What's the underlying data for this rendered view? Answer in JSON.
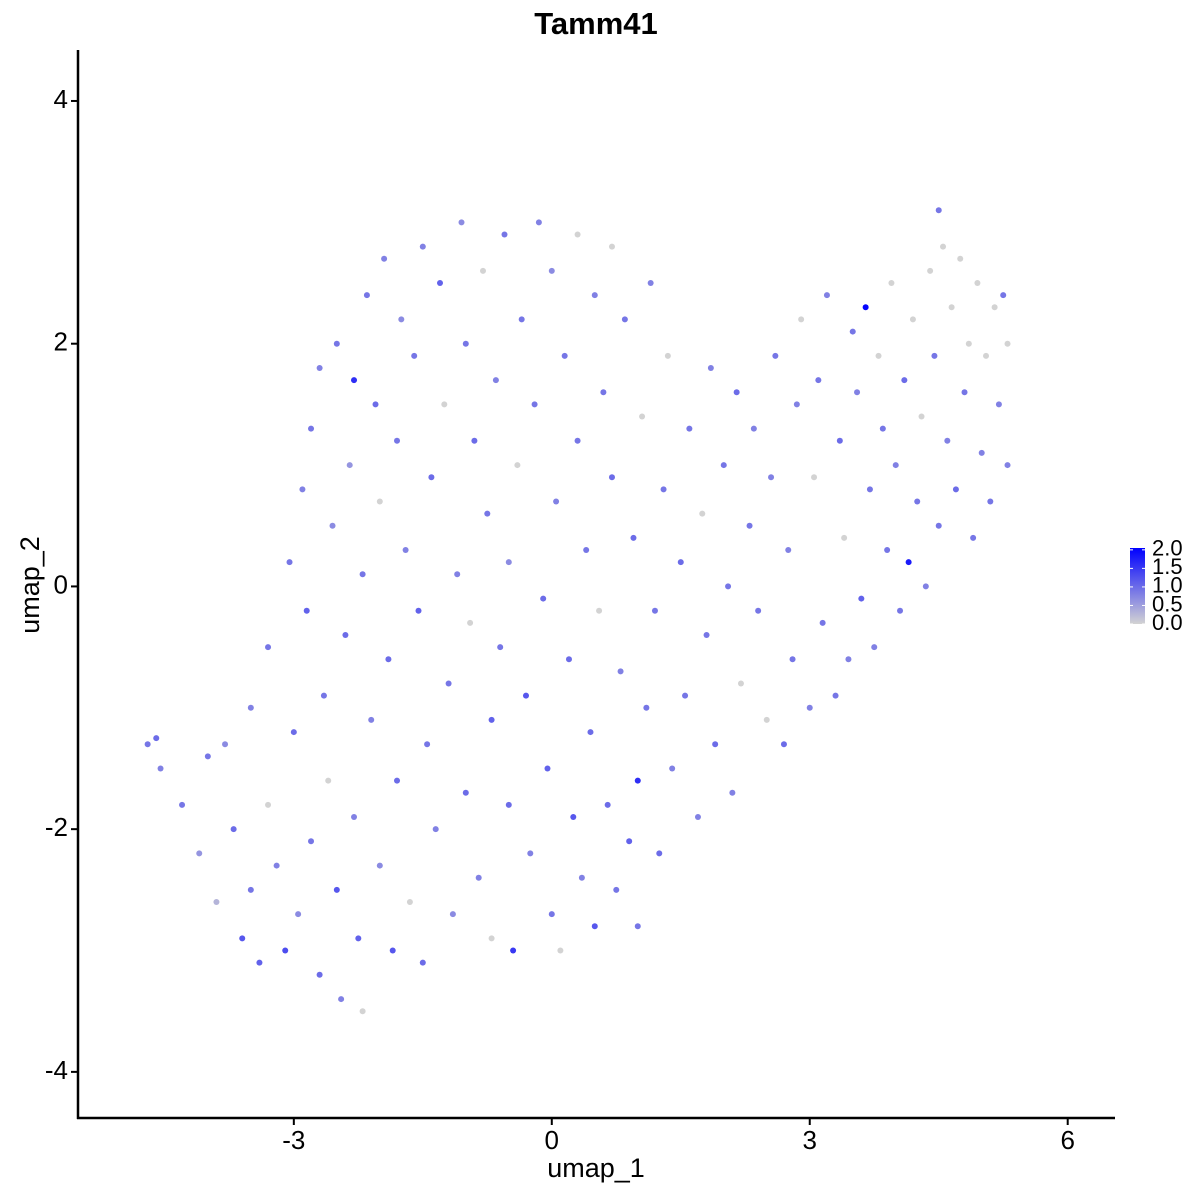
{
  "chart_data": {
    "type": "scatter",
    "title": "Tamm41",
    "x_label": "umap_1",
    "y_label": "umap_2",
    "xlim": [
      -5.51,
      6.55
    ],
    "ylim": [
      -4.38,
      4.42
    ],
    "xticks": [
      -3,
      0,
      3,
      6
    ],
    "yticks": [
      -4,
      -2,
      0,
      2,
      4
    ],
    "color_low": "#d3d3d3",
    "color_high": "#0000ff",
    "clim": [
      0,
      2.05
    ],
    "cticks": [
      {
        "value": 0,
        "label": "0.0"
      },
      {
        "value": 0.5,
        "label": "0.5"
      },
      {
        "value": 1,
        "label": "1.0"
      },
      {
        "value": 1.5,
        "label": "1.5"
      },
      {
        "value": 2,
        "label": "2.0"
      }
    ],
    "x": [
      -4.7,
      -4.6,
      -4.55,
      -4.3,
      -4.1,
      -4.0,
      -3.9,
      -3.8,
      -3.7,
      -3.6,
      -3.5,
      -3.5,
      -3.4,
      -3.3,
      -3.3,
      -3.2,
      -3.1,
      -3.05,
      -3.0,
      -2.95,
      -2.9,
      -2.85,
      -2.8,
      -2.8,
      -2.7,
      -2.7,
      -2.65,
      -2.6,
      -2.55,
      -2.5,
      -2.5,
      -2.45,
      -2.4,
      -2.35,
      -2.3,
      -2.3,
      -2.25,
      -2.2,
      -2.2,
      -2.15,
      -2.1,
      -2.05,
      -2.0,
      -2.0,
      -1.95,
      -1.9,
      -1.85,
      -1.8,
      -1.8,
      -1.75,
      -1.7,
      -1.65,
      -1.6,
      -1.55,
      -1.5,
      -1.5,
      -1.45,
      -1.4,
      -1.35,
      -1.3,
      -1.25,
      -1.2,
      -1.15,
      -1.1,
      -1.05,
      -1.0,
      -1.0,
      -0.95,
      -0.9,
      -0.85,
      -0.8,
      -0.75,
      -0.7,
      -0.7,
      -0.65,
      -0.6,
      -0.55,
      -0.5,
      -0.5,
      -0.45,
      -0.4,
      -0.35,
      -0.3,
      -0.25,
      -0.2,
      -0.15,
      -0.1,
      -0.05,
      0.0,
      0.0,
      0.05,
      0.1,
      0.15,
      0.2,
      0.25,
      0.3,
      0.3,
      0.35,
      0.4,
      0.45,
      0.5,
      0.5,
      0.55,
      0.6,
      0.65,
      0.7,
      0.7,
      0.75,
      0.8,
      0.85,
      0.9,
      0.95,
      1.0,
      1.0,
      1.05,
      1.1,
      1.15,
      1.2,
      1.25,
      1.3,
      1.35,
      1.4,
      1.5,
      1.55,
      1.6,
      1.7,
      1.75,
      1.8,
      1.85,
      1.9,
      2.0,
      2.05,
      2.1,
      2.15,
      2.2,
      2.3,
      2.35,
      2.4,
      2.5,
      2.55,
      2.6,
      2.7,
      2.75,
      2.8,
      2.85,
      2.9,
      3.0,
      3.05,
      3.1,
      3.15,
      3.2,
      3.3,
      3.35,
      3.4,
      3.45,
      3.5,
      3.55,
      3.6,
      3.65,
      3.7,
      3.75,
      3.8,
      3.85,
      3.9,
      3.95,
      4.0,
      4.05,
      4.1,
      4.15,
      4.2,
      4.25,
      4.3,
      4.35,
      4.4,
      4.45,
      4.5,
      4.5,
      4.55,
      4.6,
      4.65,
      4.7,
      4.75,
      4.8,
      4.85,
      4.9,
      4.95,
      5.0,
      5.05,
      5.1,
      5.15,
      5.2,
      5.25,
      5.3,
      5.3
    ],
    "y": [
      -1.3,
      -1.25,
      -1.5,
      -1.8,
      -2.2,
      -1.4,
      -2.6,
      -1.3,
      -2.0,
      -2.9,
      -1.0,
      -2.5,
      -3.1,
      -0.5,
      -1.8,
      -2.3,
      -3.0,
      0.2,
      -1.2,
      -2.7,
      0.8,
      -0.2,
      1.3,
      -2.1,
      -3.2,
      1.8,
      -0.9,
      -1.6,
      0.5,
      2.0,
      -2.5,
      -3.4,
      -0.4,
      1.0,
      1.7,
      -1.9,
      -2.9,
      0.1,
      -3.5,
      2.4,
      -1.1,
      1.5,
      -2.3,
      0.7,
      2.7,
      -0.6,
      -3.0,
      1.2,
      -1.6,
      2.2,
      0.3,
      -2.6,
      1.9,
      -0.2,
      -3.1,
      2.8,
      -1.3,
      0.9,
      -2.0,
      2.5,
      1.5,
      -0.8,
      -2.7,
      0.1,
      3.0,
      -1.7,
      2.0,
      -0.3,
      1.2,
      -2.4,
      2.6,
      0.6,
      -1.1,
      -2.9,
      1.7,
      -0.5,
      2.9,
      -1.8,
      0.2,
      -3.0,
      1.0,
      2.2,
      -0.9,
      -2.2,
      1.5,
      3.0,
      -0.1,
      -1.5,
      2.6,
      -2.7,
      0.7,
      -3.0,
      1.9,
      -0.6,
      -1.9,
      2.9,
      1.2,
      -2.4,
      0.3,
      -1.2,
      2.4,
      -2.8,
      -0.2,
      1.6,
      -1.8,
      2.8,
      0.9,
      -2.5,
      -0.7,
      2.2,
      -2.1,
      0.4,
      -1.6,
      -2.8,
      1.4,
      -1.0,
      2.5,
      -0.2,
      -2.2,
      0.8,
      1.9,
      -1.5,
      0.2,
      -0.9,
      1.3,
      -1.9,
      0.6,
      -0.4,
      1.8,
      -1.3,
      1.0,
      0.0,
      -1.7,
      1.6,
      -0.8,
      0.5,
      1.3,
      -0.2,
      -1.1,
      0.9,
      1.9,
      -1.3,
      0.3,
      -0.6,
      1.5,
      2.2,
      -1.0,
      0.9,
      1.7,
      -0.3,
      2.4,
      -0.9,
      1.2,
      0.4,
      -0.6,
      2.1,
      1.6,
      -0.1,
      2.3,
      0.8,
      -0.5,
      1.9,
      1.3,
      0.3,
      2.5,
      1.0,
      -0.2,
      1.7,
      0.2,
      2.2,
      0.7,
      1.4,
      0.0,
      2.6,
      1.9,
      3.1,
      0.5,
      2.8,
      1.2,
      2.3,
      0.8,
      2.7,
      1.6,
      2.0,
      0.4,
      2.5,
      1.1,
      1.9,
      0.7,
      2.3,
      1.5,
      2.4,
      1.0,
      2.0
    ],
    "values": [
      0.9,
      1.0,
      0.8,
      0.9,
      0.6,
      0.9,
      0.3,
      0.7,
      1.0,
      1.2,
      0.8,
      0.9,
      1.1,
      0.9,
      0.0,
      0.8,
      1.3,
      0.9,
      1.0,
      0.7,
      0.8,
      1.1,
      0.9,
      0.9,
      1.0,
      0.8,
      0.9,
      0.0,
      0.7,
      0.9,
      1.2,
      0.8,
      1.0,
      0.6,
      1.6,
      0.8,
      1.1,
      0.9,
      0.0,
      0.9,
      0.8,
      1.0,
      0.7,
      0.0,
      0.8,
      1.0,
      1.2,
      0.9,
      1.0,
      0.7,
      0.8,
      0.0,
      0.9,
      1.1,
      1.0,
      0.8,
      0.9,
      1.0,
      0.8,
      1.1,
      0.0,
      0.9,
      0.7,
      0.8,
      0.7,
      1.0,
      0.9,
      0.0,
      1.0,
      0.8,
      0.0,
      0.9,
      1.1,
      0.0,
      0.8,
      0.9,
      0.9,
      1.0,
      0.7,
      1.5,
      0.0,
      0.9,
      1.2,
      0.8,
      0.9,
      0.8,
      1.0,
      1.1,
      0.7,
      0.9,
      0.8,
      0.0,
      0.9,
      1.0,
      1.2,
      0.0,
      0.9,
      0.8,
      0.9,
      1.0,
      0.8,
      1.2,
      0.0,
      0.9,
      1.0,
      0.0,
      1.0,
      0.9,
      0.8,
      0.9,
      1.1,
      1.0,
      1.6,
      0.9,
      0.0,
      0.9,
      0.8,
      0.9,
      1.0,
      0.9,
      0.0,
      0.8,
      1.0,
      0.9,
      0.9,
      0.8,
      0.0,
      0.9,
      0.8,
      1.0,
      0.9,
      0.9,
      0.8,
      1.0,
      0.0,
      0.9,
      0.8,
      0.9,
      0.0,
      0.8,
      0.9,
      1.0,
      0.8,
      0.9,
      0.8,
      0.0,
      0.8,
      0.0,
      0.9,
      0.9,
      0.8,
      0.9,
      1.0,
      0.0,
      0.8,
      0.9,
      0.8,
      1.1,
      2.0,
      0.9,
      0.8,
      0.0,
      0.9,
      0.9,
      0.0,
      0.8,
      0.9,
      1.0,
      1.8,
      0.0,
      0.9,
      0.0,
      0.8,
      0.0,
      0.9,
      0.9,
      0.9,
      0.0,
      0.8,
      0.0,
      1.0,
      0.0,
      0.9,
      0.0,
      0.9,
      0.0,
      0.8,
      0.0,
      0.9,
      0.0,
      0.8,
      0.9,
      0.8,
      0.0
    ]
  }
}
